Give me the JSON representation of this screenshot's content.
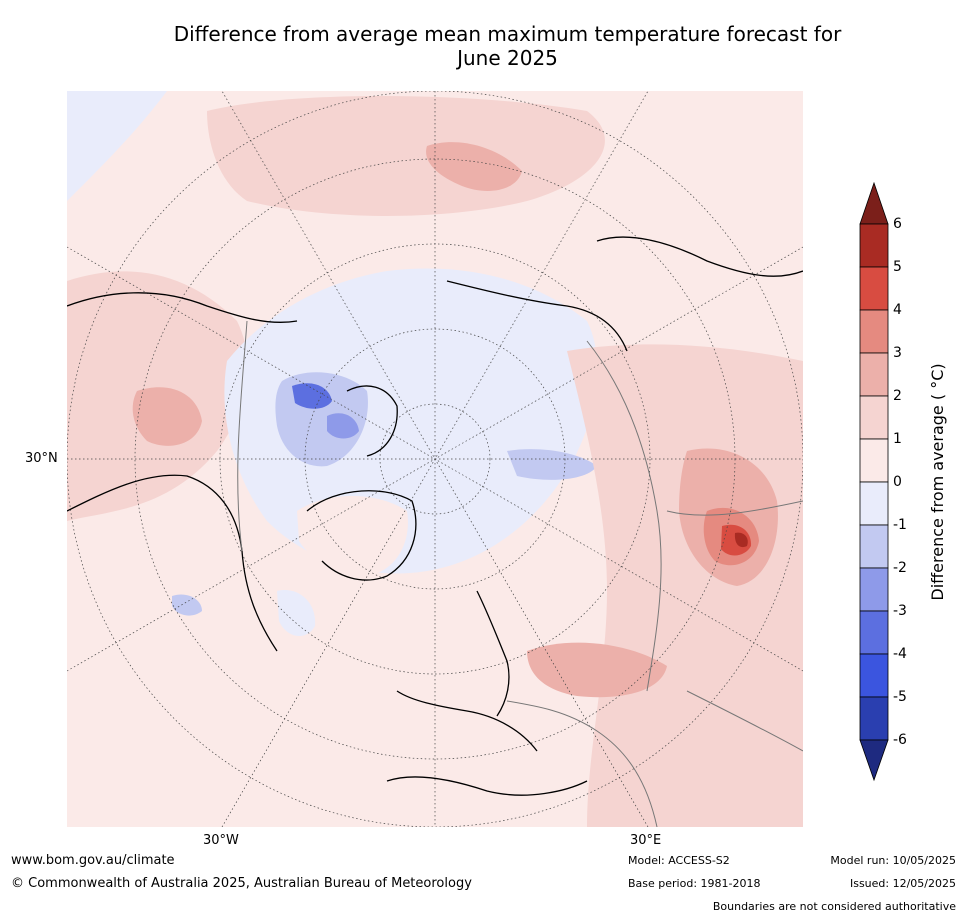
{
  "title": {
    "line1": "Difference from average mean maximum temperature forecast for",
    "line2": "June 2025"
  },
  "map": {
    "projection": "north polar stereographic",
    "lat_label": "30°N",
    "lon_labels": [
      "30°W",
      "30°E"
    ]
  },
  "colorbar": {
    "label": "Difference from average ( °C)",
    "ticks": [
      "6",
      "5",
      "4",
      "3",
      "2",
      "1",
      "0",
      "-1",
      "-2",
      "-3",
      "-4",
      "-5",
      "-6"
    ],
    "colors": {
      "over": "#7b1f1a",
      "b6": "#a92b23",
      "b5": "#d84c41",
      "b4": "#e58a80",
      "b3": "#ecb0aa",
      "b2": "#f5d4d1",
      "b1": "#fbeae8",
      "b0": "#e9ecfb",
      "bm1": "#c2c9f1",
      "bm2": "#8e9ae9",
      "bm3": "#5c6fe0",
      "bm4": "#3b55df",
      "bm5": "#2a3fb0",
      "under": "#1e2a80"
    }
  },
  "footer": {
    "website": "www.bom.gov.au/climate",
    "copyright": "© Commonwealth of Australia 2025, Australian Bureau of Meteorology",
    "model": "Model: ACCESS-S2",
    "base_period": "Base period: 1981-2018",
    "model_run": "Model run: 10/05/2025",
    "issued": "Issued: 12/05/2025",
    "disclaimer": "Boundaries are not considered authoritative"
  }
}
